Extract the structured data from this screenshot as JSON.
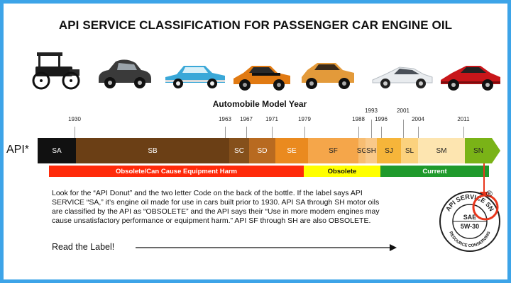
{
  "title": "API SERVICE CLASSIFICATION FOR PASSENGER CAR ENGINE OIL",
  "axis_label": "Automobile Model Year",
  "api_label": "API*",
  "years": [
    "1930",
    "1963",
    "1967",
    "1971",
    "1979",
    "1988",
    "1993",
    "1996",
    "2001",
    "2004",
    "2011"
  ],
  "categories": [
    {
      "code": "SA",
      "color": "#111111",
      "text_color": "#ffffff"
    },
    {
      "code": "SB",
      "color": "#6b3f15",
      "text_color": "#ffffff"
    },
    {
      "code": "SC",
      "color": "#85501b",
      "text_color": "#ffffff"
    },
    {
      "code": "SD",
      "color": "#b86a20",
      "text_color": "#ffffff"
    },
    {
      "code": "SE",
      "color": "#ea8a1f",
      "text_color": "#ffffff"
    },
    {
      "code": "SF",
      "color": "#f5a64a",
      "text_color": "#222222"
    },
    {
      "code": "SG",
      "color": "#f7bd72",
      "text_color": "#222222"
    },
    {
      "code": "SH",
      "color": "#f9c98a",
      "text_color": "#222222"
    },
    {
      "code": "SJ",
      "color": "#f6b53a",
      "text_color": "#222222"
    },
    {
      "code": "SL",
      "color": "#fbd27e",
      "text_color": "#222222"
    },
    {
      "code": "SM",
      "color": "#fde5b0",
      "text_color": "#222222"
    },
    {
      "code": "SN",
      "color": "#7ab317",
      "text_color": "#222222"
    }
  ],
  "status": [
    {
      "label": "Obsolete/Can Cause Equipment Harm",
      "color": "#ff2a0a",
      "text_color": "#ffffff"
    },
    {
      "label": "Obsolete",
      "color": "#ffff00",
      "text_color": "#111111"
    },
    {
      "label": "Current",
      "color": "#1f9a2c",
      "text_color": "#ffffff"
    }
  ],
  "description": "Look for the “API Donut” and the two letter Code on the back of the bottle. If the label says API SERVICE “SA,” it’s engine oil made for use in cars built prior to 1930.  API SA through SH motor oils are classified by the API as “OBSOLETE” and the API says their “Use in more modern engines may cause unsatisfactory performance or equipment harm.”  API SF through SH are also OBSOLETE.",
  "read_label": "Read the Label!",
  "donut": {
    "top_text": "API SERVICE SN",
    "bottom_text": "RESOURCE CONSERVING",
    "sae": "SAE",
    "grade": "5W-30",
    "registered": "®"
  }
}
